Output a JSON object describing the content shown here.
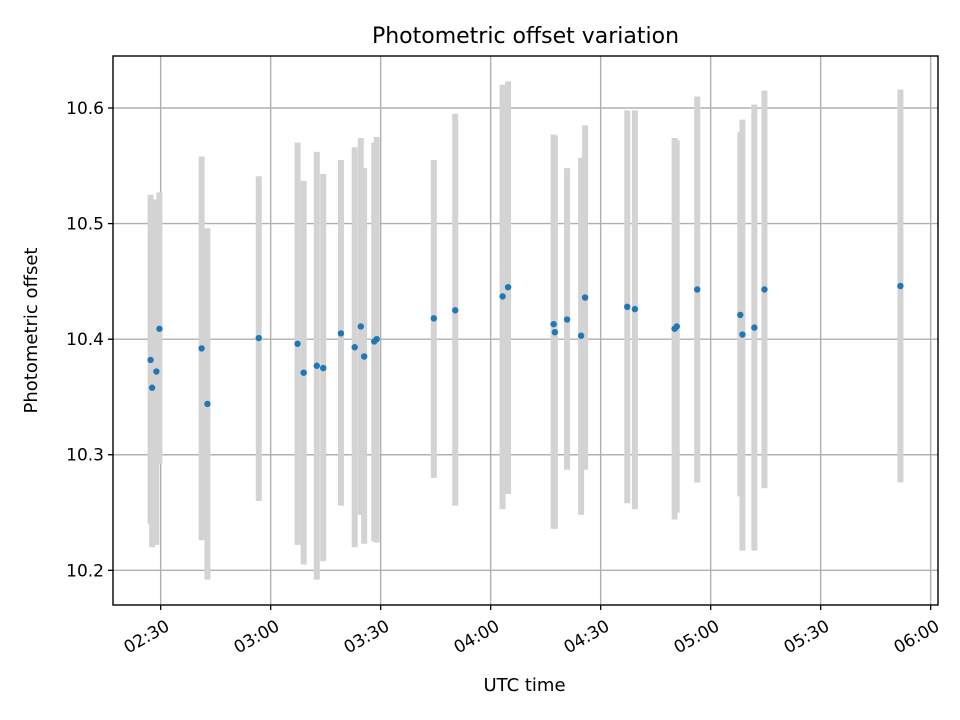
{
  "chart_data": {
    "type": "scatter",
    "title": "Photometric offset variation",
    "xlabel": "UTC time",
    "ylabel": "Photometric offset",
    "grid": true,
    "legend": "none",
    "xlim": [
      "02:17",
      "06:02"
    ],
    "ylim": [
      10.17,
      10.645
    ],
    "xticks": [
      "02:30",
      "03:00",
      "03:30",
      "04:00",
      "04:30",
      "05:00",
      "05:30",
      "06:00"
    ],
    "yticks": [
      10.2,
      10.3,
      10.4,
      10.5,
      10.6
    ],
    "marker_color": "#1f77b4",
    "errorbar_color": "#d3d3d3",
    "series": [
      {
        "points": [
          {
            "x": "02:27:15",
            "y": 10.382,
            "ylo": 10.24,
            "yhi": 10.525
          },
          {
            "x": "02:27:40",
            "y": 10.358,
            "ylo": 10.22,
            "yhi": 10.495
          },
          {
            "x": "02:28:50",
            "y": 10.372,
            "ylo": 10.222,
            "yhi": 10.521
          },
          {
            "x": "02:29:40",
            "y": 10.409,
            "ylo": 10.292,
            "yhi": 10.527
          },
          {
            "x": "02:41:10",
            "y": 10.392,
            "ylo": 10.226,
            "yhi": 10.558
          },
          {
            "x": "02:42:45",
            "y": 10.344,
            "ylo": 10.192,
            "yhi": 10.496
          },
          {
            "x": "02:56:45",
            "y": 10.401,
            "ylo": 10.26,
            "yhi": 10.541
          },
          {
            "x": "03:07:20",
            "y": 10.396,
            "ylo": 10.222,
            "yhi": 10.57
          },
          {
            "x": "03:09:00",
            "y": 10.371,
            "ylo": 10.205,
            "yhi": 10.537
          },
          {
            "x": "03:12:35",
            "y": 10.377,
            "ylo": 10.192,
            "yhi": 10.562
          },
          {
            "x": "03:14:20",
            "y": 10.375,
            "ylo": 10.208,
            "yhi": 10.543
          },
          {
            "x": "03:19:10",
            "y": 10.405,
            "ylo": 10.256,
            "yhi": 10.555
          },
          {
            "x": "03:22:55",
            "y": 10.393,
            "ylo": 10.22,
            "yhi": 10.566
          },
          {
            "x": "03:24:35",
            "y": 10.411,
            "ylo": 10.248,
            "yhi": 10.574
          },
          {
            "x": "03:25:30",
            "y": 10.385,
            "ylo": 10.223,
            "yhi": 10.548
          },
          {
            "x": "03:28:15",
            "y": 10.398,
            "ylo": 10.225,
            "yhi": 10.57
          },
          {
            "x": "03:28:55",
            "y": 10.4,
            "ylo": 10.224,
            "yhi": 10.575
          },
          {
            "x": "03:44:30",
            "y": 10.418,
            "ylo": 10.28,
            "yhi": 10.555
          },
          {
            "x": "03:50:20",
            "y": 10.425,
            "ylo": 10.256,
            "yhi": 10.595
          },
          {
            "x": "04:03:15",
            "y": 10.437,
            "ylo": 10.253,
            "yhi": 10.62
          },
          {
            "x": "04:04:45",
            "y": 10.445,
            "ylo": 10.266,
            "yhi": 10.623
          },
          {
            "x": "04:17:10",
            "y": 10.413,
            "ylo": 10.236,
            "yhi": 10.577
          },
          {
            "x": "04:17:30",
            "y": 10.406,
            "ylo": 10.236,
            "yhi": 10.576
          },
          {
            "x": "04:20:50",
            "y": 10.417,
            "ylo": 10.287,
            "yhi": 10.548
          },
          {
            "x": "04:24:40",
            "y": 10.403,
            "ylo": 10.248,
            "yhi": 10.557
          },
          {
            "x": "04:25:45",
            "y": 10.436,
            "ylo": 10.287,
            "yhi": 10.585
          },
          {
            "x": "04:37:15",
            "y": 10.428,
            "ylo": 10.258,
            "yhi": 10.598
          },
          {
            "x": "04:39:20",
            "y": 10.426,
            "ylo": 10.253,
            "yhi": 10.598
          },
          {
            "x": "04:50:10",
            "y": 10.409,
            "ylo": 10.244,
            "yhi": 10.574
          },
          {
            "x": "04:50:45",
            "y": 10.411,
            "ylo": 10.25,
            "yhi": 10.572
          },
          {
            "x": "04:56:20",
            "y": 10.443,
            "ylo": 10.276,
            "yhi": 10.61
          },
          {
            "x": "05:08:05",
            "y": 10.421,
            "ylo": 10.264,
            "yhi": 10.579
          },
          {
            "x": "05:08:40",
            "y": 10.404,
            "ylo": 10.217,
            "yhi": 10.59
          },
          {
            "x": "05:11:55",
            "y": 10.41,
            "ylo": 10.217,
            "yhi": 10.603
          },
          {
            "x": "05:14:40",
            "y": 10.443,
            "ylo": 10.271,
            "yhi": 10.615
          },
          {
            "x": "05:51:45",
            "y": 10.446,
            "ylo": 10.276,
            "yhi": 10.616
          }
        ]
      }
    ]
  }
}
